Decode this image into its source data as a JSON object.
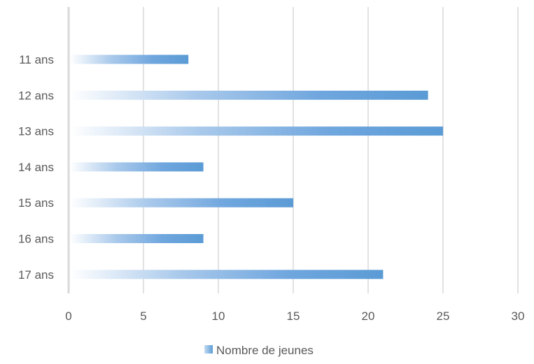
{
  "chart_data": {
    "type": "bar",
    "orientation": "horizontal",
    "title": "",
    "xlabel": "",
    "ylabel": "",
    "categories": [
      "11 ans",
      "12 ans",
      "13 ans",
      "14 ans",
      "15 ans",
      "16 ans",
      "17 ans"
    ],
    "series": [
      {
        "name": "Nombre de jeunes",
        "values": [
          8,
          24,
          25,
          9,
          15,
          9,
          21
        ],
        "color": "#5b9bd5"
      }
    ],
    "xlim": [
      0,
      30
    ],
    "xticks": [
      "0",
      "5",
      "10",
      "15",
      "20",
      "25",
      "30"
    ],
    "grid": true,
    "legend_position": "bottom",
    "bar_fill": "gradient-white-to-blue"
  }
}
